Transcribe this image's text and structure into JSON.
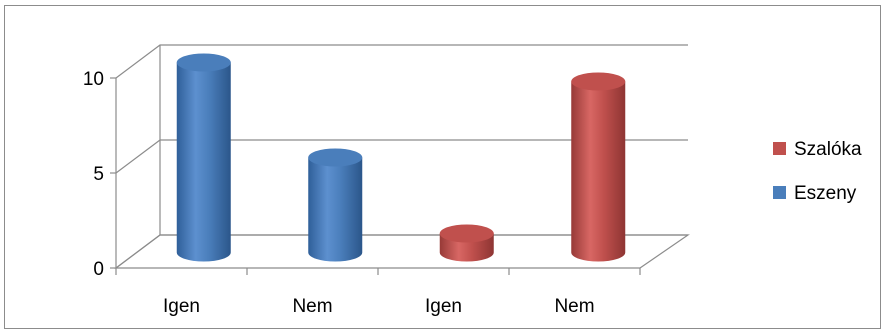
{
  "chart_data": {
    "type": "bar",
    "style": "3d-cylinder",
    "categories": [
      "Igen",
      "Nem",
      "Igen",
      "Nem"
    ],
    "series": [
      {
        "name": "Eszeny",
        "color": "#4a7ebb",
        "values": [
          10,
          5,
          null,
          null
        ]
      },
      {
        "name": "Szalóka",
        "color": "#c0504d",
        "values": [
          null,
          null,
          1,
          9
        ]
      }
    ],
    "title": "",
    "xlabel": "",
    "ylabel": "",
    "ylim": [
      0,
      10
    ],
    "yticks": [
      0,
      5,
      10
    ],
    "grid": true,
    "legend": {
      "position": "right",
      "entries": [
        {
          "label": "Szalóka",
          "color": "#c0504d"
        },
        {
          "label": "Eszeny",
          "color": "#4a7ebb"
        }
      ]
    }
  }
}
